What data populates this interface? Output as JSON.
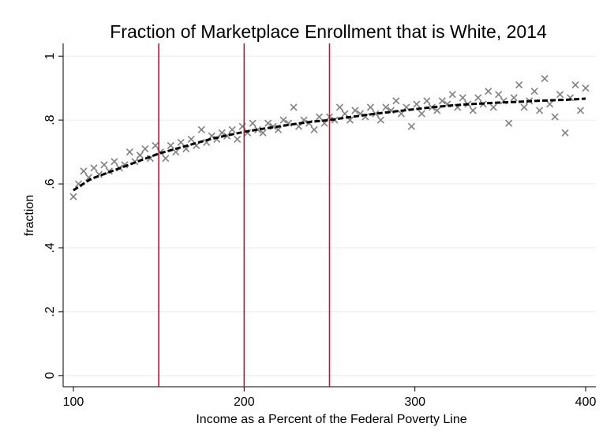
{
  "chart_data": {
    "type": "scatter",
    "title": "Fraction of Marketplace Enrollment that is White, 2014",
    "x_label": "Income as a Percent of the Federal Poverty Line",
    "y_label": "fraction",
    "xlim": [
      94,
      406
    ],
    "ylim": [
      -0.035,
      1.04
    ],
    "xticks": [
      100,
      200,
      300,
      400
    ],
    "yticks": [
      0,
      {
        "value": 0.2,
        "label": ".2"
      },
      {
        "value": 0.4,
        "label": ".4"
      },
      {
        "value": 0.6,
        "label": ".6"
      },
      {
        "value": 0.8,
        "label": ".8"
      },
      1
    ],
    "grid": true,
    "series": [
      {
        "color": "#808080",
        "x": [
          100,
          103,
          106,
          109,
          112,
          115,
          118,
          121,
          124,
          127,
          130,
          133,
          136,
          139,
          142,
          145,
          148,
          151,
          154,
          157,
          160,
          163,
          166,
          169,
          172,
          175,
          178,
          181,
          184,
          187,
          190,
          193,
          196,
          199,
          202,
          205,
          208,
          211,
          214,
          217,
          220,
          223,
          226,
          229,
          232,
          235,
          238,
          241,
          244,
          247,
          250,
          253,
          256,
          259,
          262,
          265,
          268,
          271,
          274,
          277,
          280,
          283,
          286,
          289,
          292,
          295,
          298,
          301,
          304,
          307,
          310,
          313,
          316,
          319,
          322,
          325,
          328,
          331,
          334,
          337,
          340,
          343,
          346,
          349,
          352,
          355,
          358,
          361,
          364,
          367,
          370,
          373,
          376,
          379,
          382,
          385,
          388,
          391,
          394,
          397,
          400
        ],
        "values": [
          0.56,
          0.6,
          0.64,
          0.62,
          0.65,
          0.63,
          0.66,
          0.64,
          0.67,
          0.65,
          0.66,
          0.7,
          0.67,
          0.69,
          0.71,
          0.68,
          0.72,
          0.7,
          0.68,
          0.72,
          0.7,
          0.73,
          0.71,
          0.74,
          0.72,
          0.77,
          0.73,
          0.75,
          0.74,
          0.76,
          0.75,
          0.77,
          0.74,
          0.78,
          0.76,
          0.79,
          0.77,
          0.76,
          0.79,
          0.78,
          0.77,
          0.8,
          0.79,
          0.84,
          0.78,
          0.8,
          0.79,
          0.77,
          0.81,
          0.79,
          0.81,
          0.8,
          0.84,
          0.82,
          0.8,
          0.83,
          0.82,
          0.81,
          0.84,
          0.82,
          0.8,
          0.84,
          0.83,
          0.86,
          0.82,
          0.84,
          0.78,
          0.85,
          0.82,
          0.86,
          0.84,
          0.83,
          0.86,
          0.85,
          0.88,
          0.84,
          0.87,
          0.85,
          0.83,
          0.87,
          0.85,
          0.89,
          0.84,
          0.88,
          0.86,
          0.79,
          0.87,
          0.91,
          0.84,
          0.86,
          0.89,
          0.83,
          0.93,
          0.85,
          0.81,
          0.88,
          0.76,
          0.87,
          0.91,
          0.83,
          0.9
        ]
      }
    ],
    "fit": {
      "color": "#000000",
      "x": [
        100,
        110,
        120,
        130,
        140,
        150,
        160,
        170,
        180,
        190,
        200,
        210,
        220,
        230,
        240,
        250,
        260,
        270,
        280,
        290,
        300,
        310,
        320,
        330,
        340,
        350,
        360,
        370,
        380,
        390,
        400
      ],
      "values": [
        0.58,
        0.615,
        0.635,
        0.655,
        0.675,
        0.695,
        0.71,
        0.725,
        0.74,
        0.752,
        0.763,
        0.772,
        0.78,
        0.788,
        0.795,
        0.8,
        0.808,
        0.815,
        0.822,
        0.828,
        0.834,
        0.84,
        0.845,
        0.849,
        0.852,
        0.855,
        0.857,
        0.86,
        0.862,
        0.864,
        0.867
      ]
    },
    "reference_lines": {
      "color": "#c0143c",
      "values": [
        150,
        200,
        250
      ]
    }
  }
}
